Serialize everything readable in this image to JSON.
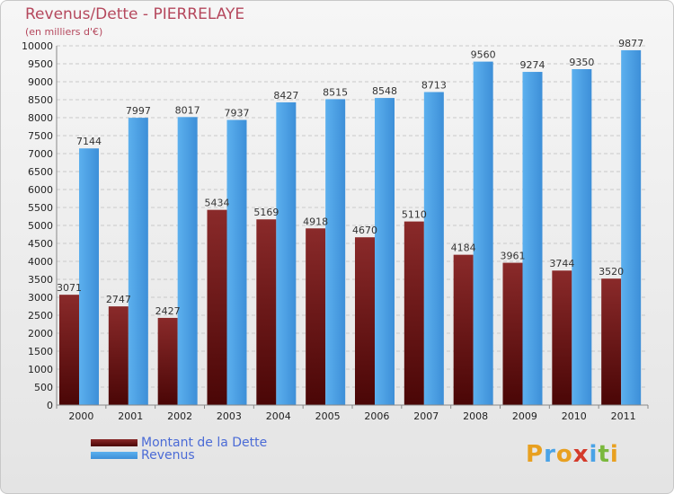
{
  "title": "Revenus/Dette - PIERRELAYE",
  "subtitle": "(en milliers d'€)",
  "colors": {
    "title": "#b5485d",
    "debt": "#7a1a1a",
    "revenue": "#4aa3e6",
    "legend_text": "#4b6bd6"
  },
  "legend": {
    "placement": "bottom-left",
    "items": [
      "Montant de la Dette",
      "Revenus"
    ]
  },
  "brand": {
    "letters": [
      "P",
      "r",
      "o",
      "x",
      "i",
      "t",
      "i"
    ],
    "colors": [
      "#e8a020",
      "#4aa3e6",
      "#e8a020",
      "#d43a2a",
      "#4aa3e6",
      "#7ab83c",
      "#e8a020"
    ]
  },
  "chart_data": {
    "type": "bar",
    "categories": [
      "2000",
      "2001",
      "2002",
      "2003",
      "2004",
      "2005",
      "2006",
      "2007",
      "2008",
      "2009",
      "2010",
      "2011"
    ],
    "series": [
      {
        "name": "Montant de la Dette",
        "values": [
          3071,
          2747,
          2427,
          5434,
          5169,
          4918,
          4670,
          5110,
          4184,
          3961,
          3744,
          3520
        ]
      },
      {
        "name": "Revenus",
        "values": [
          7144,
          7997,
          8017,
          7937,
          8427,
          8515,
          8548,
          8713,
          9560,
          9274,
          9350,
          9877
        ]
      }
    ],
    "data_labels": [
      [
        "3071",
        "2747",
        "2427",
        "5434",
        "5169",
        "4918",
        "4670",
        "5110",
        "4184",
        "3961",
        "3744",
        "3520"
      ],
      [
        "7144",
        "7997",
        "8017",
        "7937",
        "8427",
        "8515",
        "8548",
        "8713",
        "9560",
        "9274",
        "9350",
        "9877"
      ]
    ],
    "ylim": [
      0,
      10000
    ],
    "ytick_step": 500,
    "grid": true,
    "xlabel": "",
    "ylabel": ""
  }
}
